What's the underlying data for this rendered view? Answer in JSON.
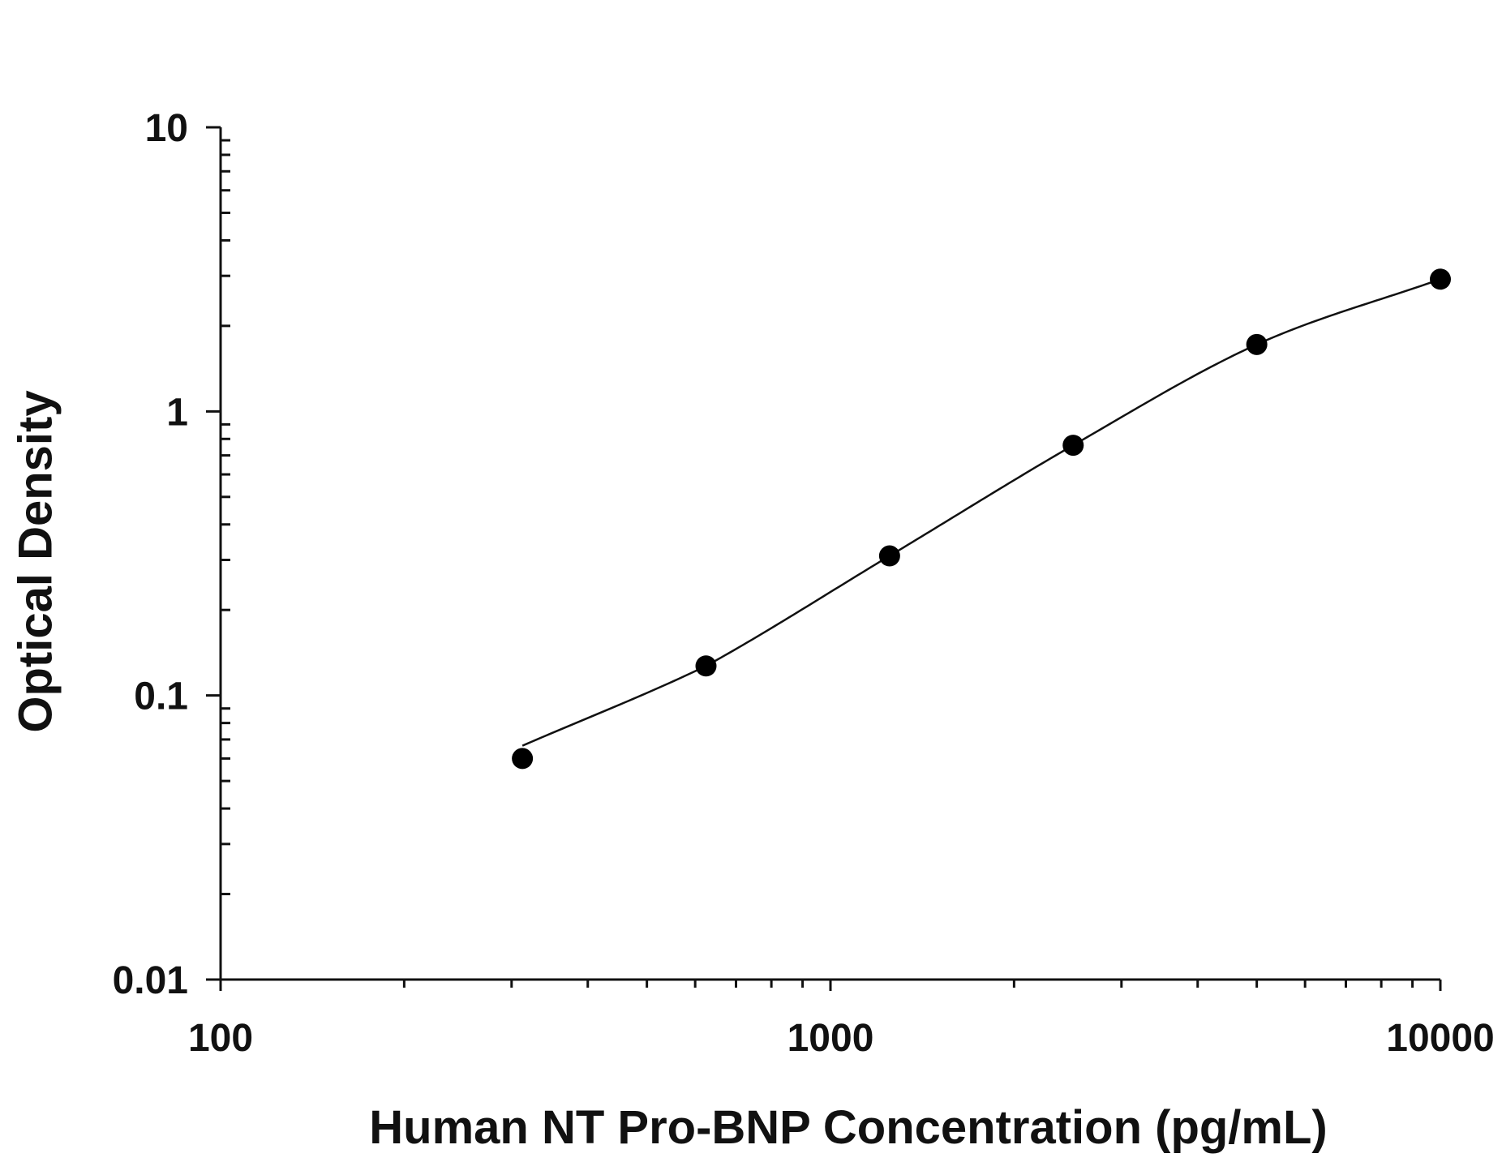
{
  "chart_data": {
    "type": "scatter",
    "title": "",
    "xlabel": "Human NT Pro-BNP Concentration (pg/mL)",
    "ylabel": "Optical Density",
    "xscale": "log",
    "yscale": "log",
    "xlim": [
      100,
      10000
    ],
    "ylim": [
      0.01,
      10
    ],
    "x_ticks": [
      100,
      1000,
      10000
    ],
    "x_tick_labels": [
      "100",
      "1000",
      "10000"
    ],
    "y_ticks": [
      0.01,
      0.1,
      1,
      10
    ],
    "y_tick_labels": [
      "0.01",
      "0.1",
      "1",
      "10"
    ],
    "grid": false,
    "legend": "none",
    "series": [
      {
        "x": [
          312.5,
          625,
          1250,
          2500,
          5000,
          10000
        ],
        "y": [
          0.06,
          0.127,
          0.31,
          0.76,
          1.72,
          2.92
        ],
        "marker": "filled-circle",
        "color": "#000000",
        "fit": "4-parameter-logistic"
      }
    ]
  }
}
